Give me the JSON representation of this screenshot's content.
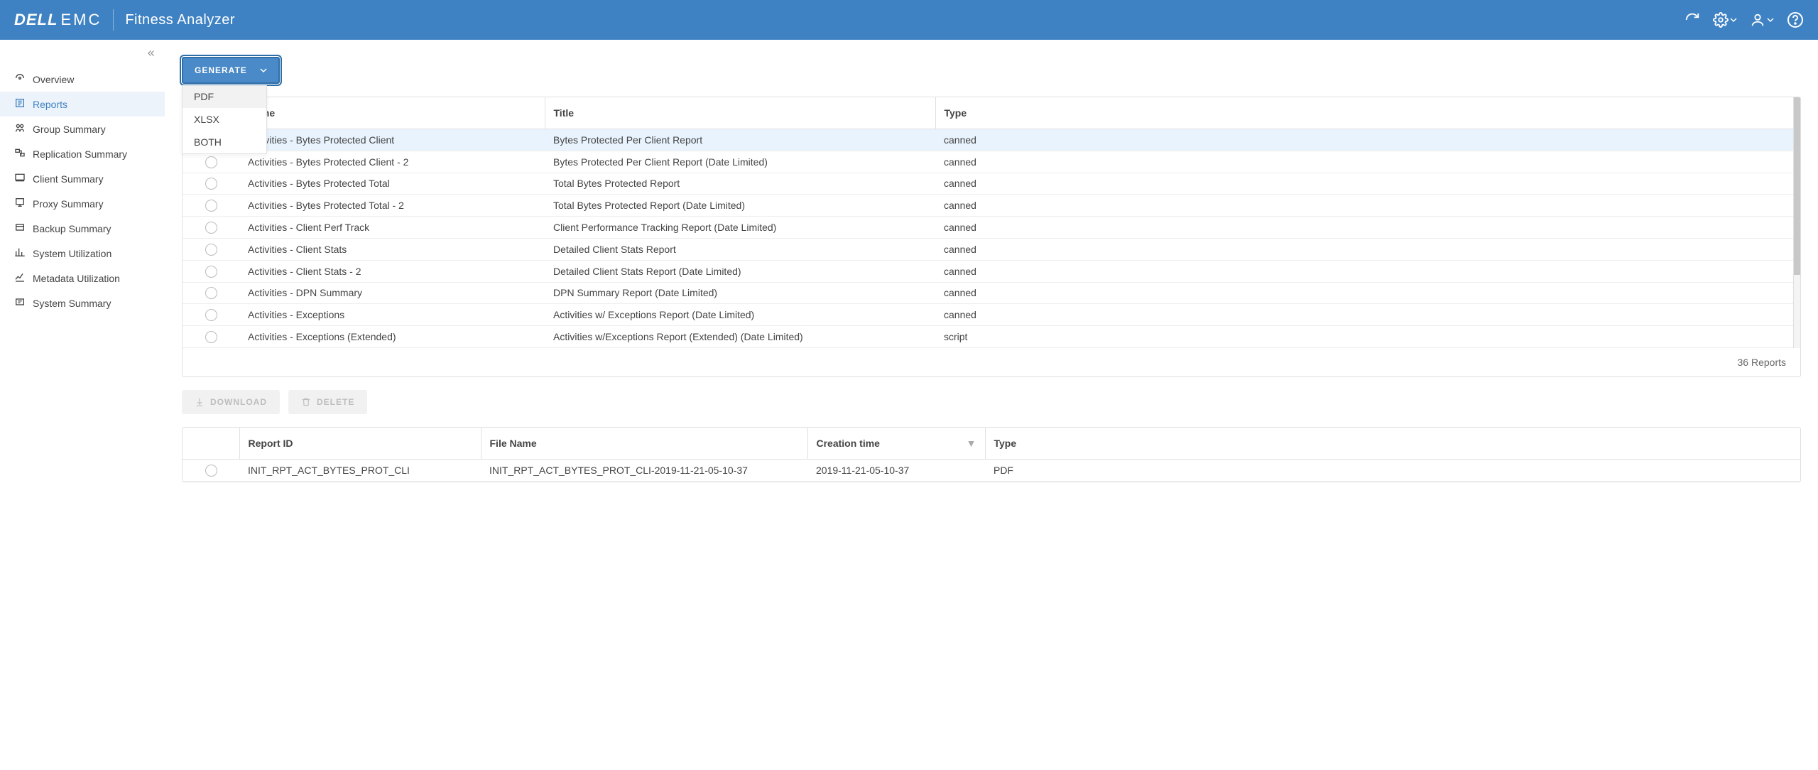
{
  "brand": {
    "dell": "DELL",
    "emc": "EMC"
  },
  "app_title": "Fitness Analyzer",
  "sidebar": {
    "items": [
      {
        "label": "Overview",
        "active": false
      },
      {
        "label": "Reports",
        "active": true
      },
      {
        "label": "Group Summary",
        "active": false
      },
      {
        "label": "Replication Summary",
        "active": false
      },
      {
        "label": "Client Summary",
        "active": false
      },
      {
        "label": "Proxy Summary",
        "active": false
      },
      {
        "label": "Backup Summary",
        "active": false
      },
      {
        "label": "System Utilization",
        "active": false
      },
      {
        "label": "Metadata Utilization",
        "active": false
      },
      {
        "label": "System Summary",
        "active": false
      }
    ]
  },
  "generate": {
    "label": "GENERATE",
    "options": [
      {
        "label": "PDF",
        "highlight": true
      },
      {
        "label": "XLSX",
        "highlight": false
      },
      {
        "label": "BOTH",
        "highlight": false
      }
    ]
  },
  "reports_table": {
    "columns": [
      "",
      "Name",
      "Title",
      "Type"
    ],
    "rows": [
      {
        "name": "Activities - Bytes Protected Client",
        "title": "Bytes Protected Per Client Report",
        "type": "canned",
        "selected": true
      },
      {
        "name": "Activities - Bytes Protected Client - 2",
        "title": "Bytes Protected Per Client Report (Date Limited)",
        "type": "canned",
        "selected": false
      },
      {
        "name": "Activities - Bytes Protected Total",
        "title": "Total Bytes Protected Report",
        "type": "canned",
        "selected": false
      },
      {
        "name": "Activities - Bytes Protected Total - 2",
        "title": "Total Bytes Protected Report (Date Limited)",
        "type": "canned",
        "selected": false
      },
      {
        "name": "Activities - Client Perf Track",
        "title": "Client Performance Tracking Report (Date Limited)",
        "type": "canned",
        "selected": false
      },
      {
        "name": "Activities - Client Stats",
        "title": "Detailed Client Stats Report",
        "type": "canned",
        "selected": false
      },
      {
        "name": "Activities - Client Stats - 2",
        "title": "Detailed Client Stats Report (Date Limited)",
        "type": "canned",
        "selected": false
      },
      {
        "name": "Activities - DPN Summary",
        "title": "DPN Summary Report (Date Limited)",
        "type": "canned",
        "selected": false
      },
      {
        "name": "Activities - Exceptions",
        "title": "Activities w/ Exceptions Report (Date Limited)",
        "type": "canned",
        "selected": false
      },
      {
        "name": "Activities - Exceptions (Extended)",
        "title": "Activities w/Exceptions Report (Extended) (Date Limited)",
        "type": "script",
        "selected": false
      }
    ],
    "footer": "36 Reports"
  },
  "actions": {
    "download": "DOWNLOAD",
    "delete": "DELETE"
  },
  "instances_table": {
    "columns": [
      "",
      "Report ID",
      "File Name",
      "Creation time",
      "Type"
    ],
    "rows": [
      {
        "report_id": "INIT_RPT_ACT_BYTES_PROT_CLI",
        "file": "INIT_RPT_ACT_BYTES_PROT_CLI-2019-11-21-05-10-37",
        "ctime": "2019-11-21-05-10-37",
        "type": "PDF"
      }
    ]
  },
  "colors": {
    "header": "#3f82c3",
    "accent": "#4a8ac8",
    "selected_row": "#e8f3fd"
  }
}
